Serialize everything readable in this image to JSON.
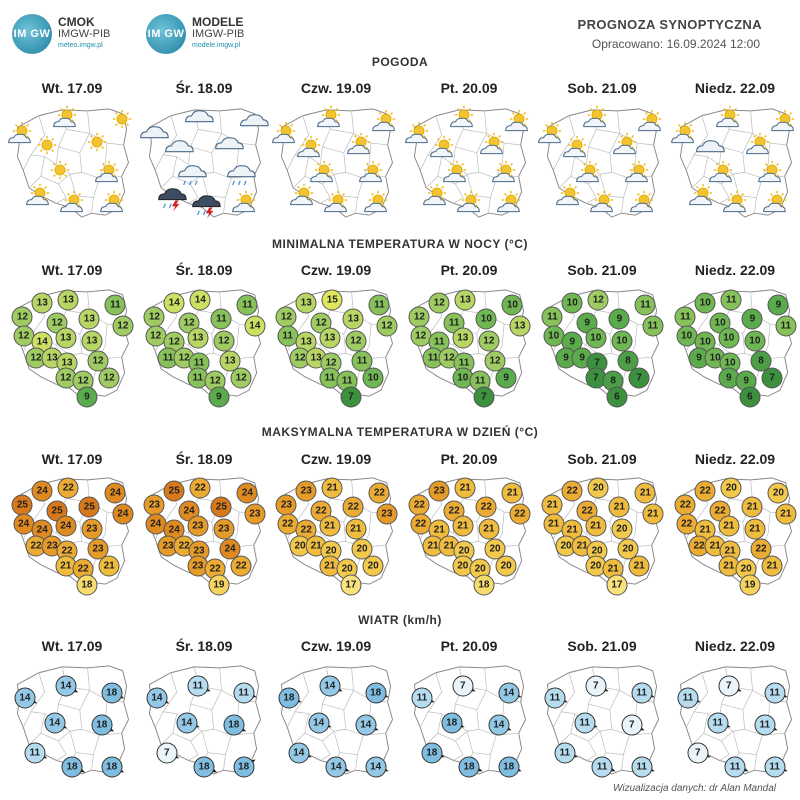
{
  "header": {
    "logo1": {
      "mark": "IM GW",
      "name": "CMOK",
      "sub": "IMGW-PIB",
      "url": "meteo.imgw.pl"
    },
    "logo2": {
      "mark": "IM GW",
      "name": "MODELE",
      "sub": "IMGW-PIB",
      "url": "modele.imgw.pl"
    },
    "title": "PROGNOZA SYNOPTYCZNA",
    "prepared": "Opracowano: 16.09.2024 12:00"
  },
  "days": [
    "Wt. 17.09",
    "Śr. 18.09",
    "Czw. 19.09",
    "Pt. 20.09",
    "Sob. 21.09",
    "Niedz. 22.09"
  ],
  "sections": {
    "weather": "POGODA",
    "tmin": "MINIMALNA TEMPERATURA W NOCY (°C)",
    "tmax": "MAKSYMALNA TEMPERATURA W DZIEŃ (°C)",
    "wind": "WIATR (km/h)"
  },
  "weather_icons": [
    [
      "sun-cloud",
      "sun-cloud",
      "sun",
      "sun",
      "sun",
      "sun",
      "sun-cloud",
      "sun-cloud",
      "sun-cloud",
      "sun-cloud"
    ],
    [
      "cloud",
      "cloud",
      "cloud",
      "cloud",
      "cloud",
      "rain-cloud",
      "rain-cloud",
      "storm-rain",
      "storm-rain",
      "sun-cloud"
    ],
    [
      "sun-cloud",
      "sun-cloud",
      "sun-cloud",
      "sun-cloud",
      "sun-cloud",
      "sun-cloud",
      "sun-cloud",
      "sun-cloud",
      "sun-cloud",
      "sun-cloud"
    ],
    [
      "sun-cloud",
      "sun-cloud",
      "sun-cloud",
      "sun-cloud",
      "sun-cloud",
      "sun-cloud",
      "sun-cloud",
      "sun-cloud",
      "sun-cloud",
      "sun-cloud"
    ],
    [
      "sun-cloud",
      "sun-cloud",
      "sun-cloud",
      "sun-cloud",
      "sun-cloud",
      "sun-cloud",
      "sun-cloud",
      "sun-cloud",
      "sun-cloud",
      "sun-cloud"
    ],
    [
      "sun-cloud",
      "sun-cloud",
      "sun-cloud",
      "cloud",
      "sun-cloud",
      "sun-cloud",
      "sun-cloud",
      "sun-cloud",
      "sun-cloud",
      "sun-cloud"
    ]
  ],
  "tmin": [
    [
      13,
      13,
      11,
      12,
      12,
      13,
      12,
      12,
      14,
      13,
      13,
      12,
      13,
      13,
      12,
      12,
      12,
      12,
      9
    ],
    [
      14,
      14,
      11,
      12,
      12,
      11,
      14,
      12,
      12,
      13,
      12,
      11,
      12,
      11,
      13,
      11,
      12,
      12,
      9
    ],
    [
      13,
      15,
      11,
      12,
      12,
      13,
      12,
      11,
      13,
      13,
      12,
      12,
      13,
      12,
      11,
      11,
      11,
      10,
      7
    ],
    [
      12,
      13,
      10,
      12,
      11,
      10,
      13,
      12,
      11,
      13,
      12,
      11,
      12,
      11,
      12,
      10,
      11,
      9,
      7
    ],
    [
      10,
      12,
      11,
      11,
      9,
      9,
      11,
      10,
      9,
      10,
      10,
      9,
      9,
      7,
      8,
      7,
      8,
      7,
      6
    ],
    [
      10,
      11,
      9,
      11,
      10,
      9,
      11,
      10,
      10,
      10,
      10,
      9,
      10,
      10,
      8,
      9,
      9,
      7,
      6
    ]
  ],
  "tmax": [
    [
      24,
      22,
      24,
      25,
      25,
      25,
      24,
      24,
      24,
      24,
      23,
      22,
      23,
      22,
      23,
      21,
      22,
      21,
      18
    ],
    [
      25,
      22,
      24,
      23,
      24,
      25,
      23,
      24,
      24,
      23,
      23,
      23,
      22,
      23,
      24,
      23,
      22,
      22,
      19
    ],
    [
      23,
      21,
      22,
      23,
      22,
      22,
      23,
      22,
      22,
      21,
      21,
      20,
      21,
      20,
      20,
      21,
      20,
      20,
      17
    ],
    [
      23,
      21,
      21,
      22,
      22,
      22,
      22,
      22,
      21,
      21,
      21,
      21,
      21,
      20,
      20,
      20,
      20,
      20,
      18
    ],
    [
      22,
      20,
      21,
      21,
      22,
      21,
      21,
      21,
      21,
      21,
      20,
      20,
      21,
      20,
      20,
      20,
      21,
      21,
      17
    ],
    [
      22,
      20,
      20,
      22,
      22,
      21,
      21,
      22,
      21,
      21,
      21,
      22,
      21,
      21,
      22,
      21,
      20,
      21,
      19
    ]
  ],
  "wind": [
    [
      14,
      14,
      18,
      14,
      18,
      11,
      18,
      18
    ],
    [
      14,
      11,
      11,
      14,
      18,
      7,
      18,
      18
    ],
    [
      18,
      14,
      18,
      14,
      14,
      14,
      14,
      14
    ],
    [
      11,
      7,
      14,
      18,
      14,
      18,
      18,
      18
    ],
    [
      11,
      7,
      11,
      11,
      7,
      11,
      11,
      11
    ],
    [
      11,
      7,
      11,
      11,
      11,
      7,
      11,
      11
    ]
  ],
  "credit": "Wizualizacja danych: dr Alan Mandal"
}
